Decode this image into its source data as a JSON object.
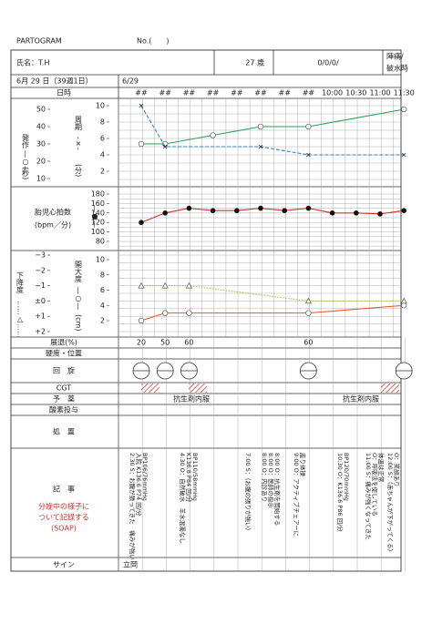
{
  "header": {
    "title": "PARTOGRAM",
    "number": "No.(　　)"
  },
  "patient": {
    "name": "氏名：T.H",
    "age": "27 歳",
    "gravida_para": "0/0/0/",
    "onset": [
      "陣痛/",
      "破水時"
    ]
  },
  "date": {
    "label": "6月 29 日（39週1日）",
    "column": "6/29"
  },
  "time_row": {
    "label": "日時",
    "times": [
      "##",
      "##",
      "##",
      "##",
      "##",
      "##",
      "##",
      "##",
      "10:00",
      "10:30",
      "11:00",
      "11:30"
    ]
  },
  "sections": {
    "contraction": {
      "left": [
        "発作",
        "—○—",
        "(秒)"
      ],
      "right": [
        "周期",
        "-×-",
        "(分)"
      ]
    },
    "fhr": {
      "label": "胎児心拍数",
      "unit": "(bpm／分)",
      "marker": "—●—"
    },
    "labor": {
      "left": [
        "下降度",
        "……△……"
      ],
      "right": [
        "開大度",
        "—○—",
        "(cm)"
      ]
    }
  },
  "axes": {
    "duration": {
      "lim": [
        10,
        50
      ],
      "ticks": [
        50,
        40,
        30,
        20,
        10
      ]
    },
    "cycle": {
      "lim": [
        2,
        10
      ],
      "ticks": [
        10,
        8,
        6,
        4,
        2
      ]
    },
    "fhr": {
      "lim": [
        80,
        180
      ],
      "ticks": [
        180,
        160,
        140,
        120,
        100,
        80
      ]
    },
    "dilation": {
      "lim": [
        2,
        10
      ],
      "ticks": [
        10,
        8,
        6,
        4,
        2
      ]
    },
    "descent": {
      "lim": [
        -3,
        2
      ],
      "ticks": [
        {
          "value": -3,
          "label": "−3"
        },
        {
          "value": -2,
          "label": "−2"
        },
        {
          "value": -1,
          "label": "−1"
        },
        {
          "value": 0,
          "label": "±0"
        },
        {
          "value": 1,
          "label": "+1"
        },
        {
          "value": 2,
          "label": "+2"
        }
      ]
    }
  },
  "plots": {
    "duration": {
      "axis": "duration",
      "color": "#2e9e5b",
      "marker": "circle",
      "values": [
        30,
        30,
        null,
        35,
        null,
        40,
        null,
        40,
        null,
        null,
        null,
        50
      ]
    },
    "cycle": {
      "axis": "cycle",
      "color": "#3b82c4",
      "marker": "cross",
      "values": [
        10,
        5,
        null,
        null,
        null,
        5,
        null,
        4,
        null,
        null,
        null,
        4
      ]
    },
    "fhr": {
      "axis": "fhr",
      "color": "#d0342c",
      "marker": "dot",
      "values": [
        120,
        140,
        150,
        145,
        145,
        150,
        145,
        150,
        140,
        140,
        138,
        145
      ]
    },
    "dilation": {
      "axis": "dilation",
      "color": "#e4572e",
      "marker": "circle",
      "values": [
        2,
        3,
        3,
        null,
        null,
        null,
        null,
        3,
        null,
        null,
        null,
        4
      ]
    },
    "descent": {
      "axis": "descent",
      "color": "#9bc53d",
      "marker": "triangle",
      "values": [
        -1,
        -1,
        -1,
        null,
        null,
        null,
        null,
        0,
        null,
        null,
        null,
        0
      ]
    }
  },
  "rows": {
    "effacement": {
      "label": "展退(%)",
      "values": [
        "20",
        "50",
        "60",
        null,
        null,
        null,
        null,
        "60",
        null,
        null,
        null,
        null
      ]
    },
    "consistency": {
      "label": "硬度・位置"
    },
    "rotation": {
      "label": "回　旋"
    },
    "cgt": {
      "label": "CGT"
    },
    "medication": {
      "label": "予　薬",
      "entries": [
        "抗生剤内服",
        "抗生剤内服"
      ]
    },
    "oxygen": {
      "label": "酸素投与"
    },
    "treatment": {
      "label": "処　置"
    },
    "notes": {
      "label": "記　事",
      "hint": [
        "分娩中の様子に",
        "ついて記録する",
        "(SOAP)"
      ],
      "entries": [
        [
          "2:30 S：お腹が張ってきた　痛みが強い",
          "入院 K136.6 P74 回/分",
          "BP106/76mmHg"
        ],
        [
          "4:30 O：自然破水　羊水混濁なし",
          "K136.8 P84 回/分",
          "BP110/58mmHg"
        ],
        [
          "7:00 S：（お腹の張りが強い）"
        ],
        [
          "8:00 O：内診あり",
          "8:00 O：医師の指示",
          "8:00 O：抗生剤を開始する"
        ],
        [
          "9:00 O：アクティブチェアーに",
          "座り体操"
        ],
        [
          "10:30 O：K136.6 P86 回/分",
          "BP120/70mmHg"
        ],
        [
          "11:00 S：痛みが強くなってきた",
          "O：呼吸法を促している",
          "体温は正常"
        ],
        [
          "12:00 S：（赤ちゃんが下がってくる）",
          "O：笑顔あり"
        ]
      ]
    },
    "sign": {
      "label": "サイン",
      "value": "立岡"
    }
  }
}
